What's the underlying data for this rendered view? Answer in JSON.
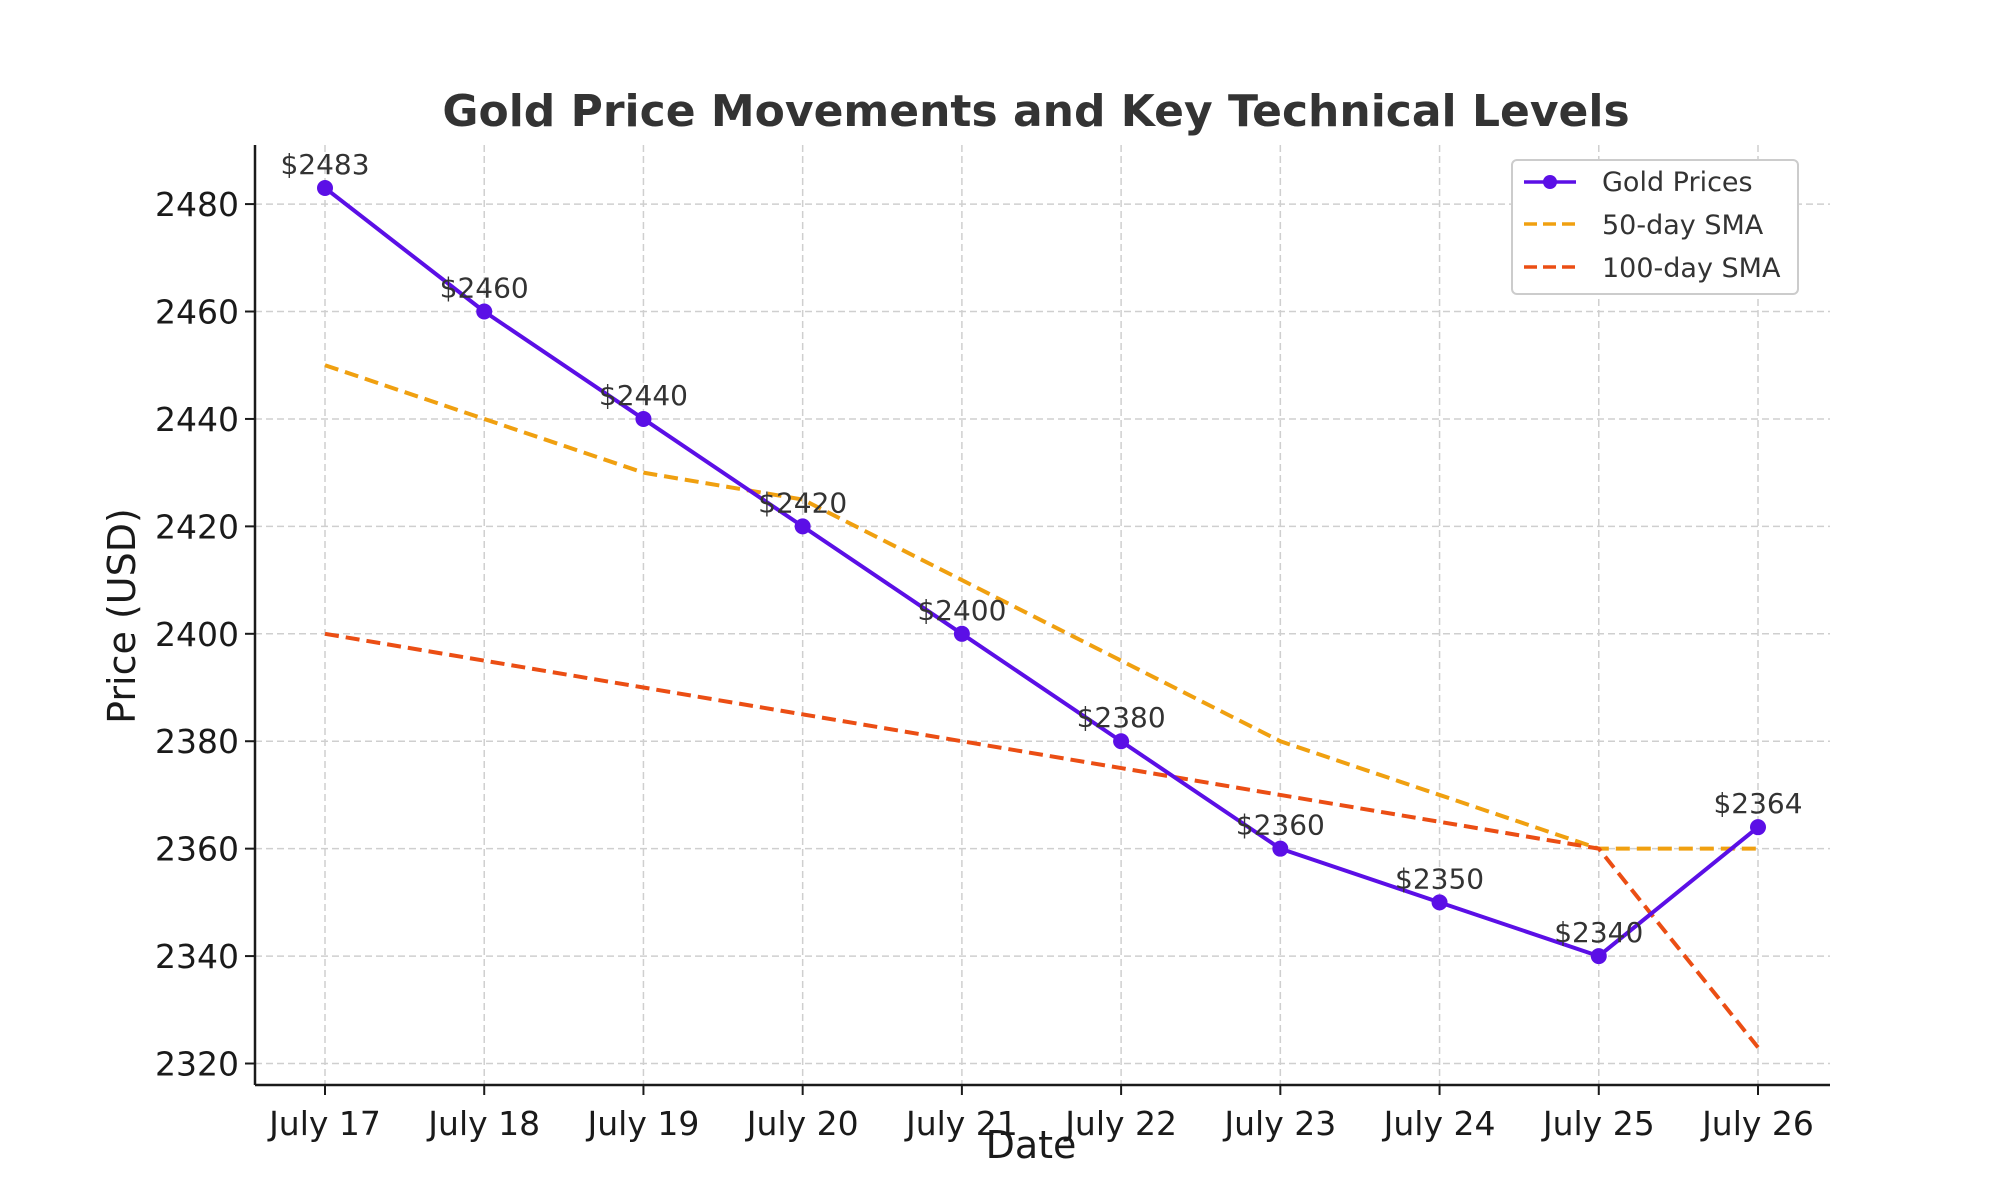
{
  "chart_data": {
    "type": "line",
    "title": "Gold Price Movements and Key Technical Levels",
    "xlabel": "Date",
    "ylabel": "Price (USD)",
    "categories": [
      "July 17",
      "July 18",
      "July 19",
      "July 20",
      "July 21",
      "July 22",
      "July 23",
      "July 24",
      "July 25",
      "July 26"
    ],
    "ylim": [
      2316,
      2491
    ],
    "yticks": [
      2320,
      2340,
      2360,
      2380,
      2400,
      2420,
      2440,
      2460,
      2480
    ],
    "grid": true,
    "legend_position": "top-right",
    "series": [
      {
        "name": "Gold Prices",
        "values": [
          2483,
          2460,
          2440,
          2420,
          2400,
          2380,
          2360,
          2350,
          2340,
          2364
        ],
        "color": "#5b0fe6",
        "style": "solid",
        "markers": true
      },
      {
        "name": "50-day SMA",
        "values": [
          2450,
          2440,
          2430,
          2425,
          2410,
          2395,
          2380,
          2370,
          2360,
          2360
        ],
        "color": "#f0a010",
        "style": "dashed",
        "markers": false
      },
      {
        "name": "100-day SMA",
        "values": [
          2400,
          2395,
          2390,
          2385,
          2380,
          2375,
          2370,
          2365,
          2360,
          2323
        ],
        "color": "#eb4e14",
        "style": "dashed",
        "markers": false
      }
    ],
    "data_labels": [
      "$2483",
      "$2460",
      "$2440",
      "$2420",
      "$2400",
      "$2380",
      "$2360",
      "$2350",
      "$2340",
      "$2364"
    ]
  }
}
